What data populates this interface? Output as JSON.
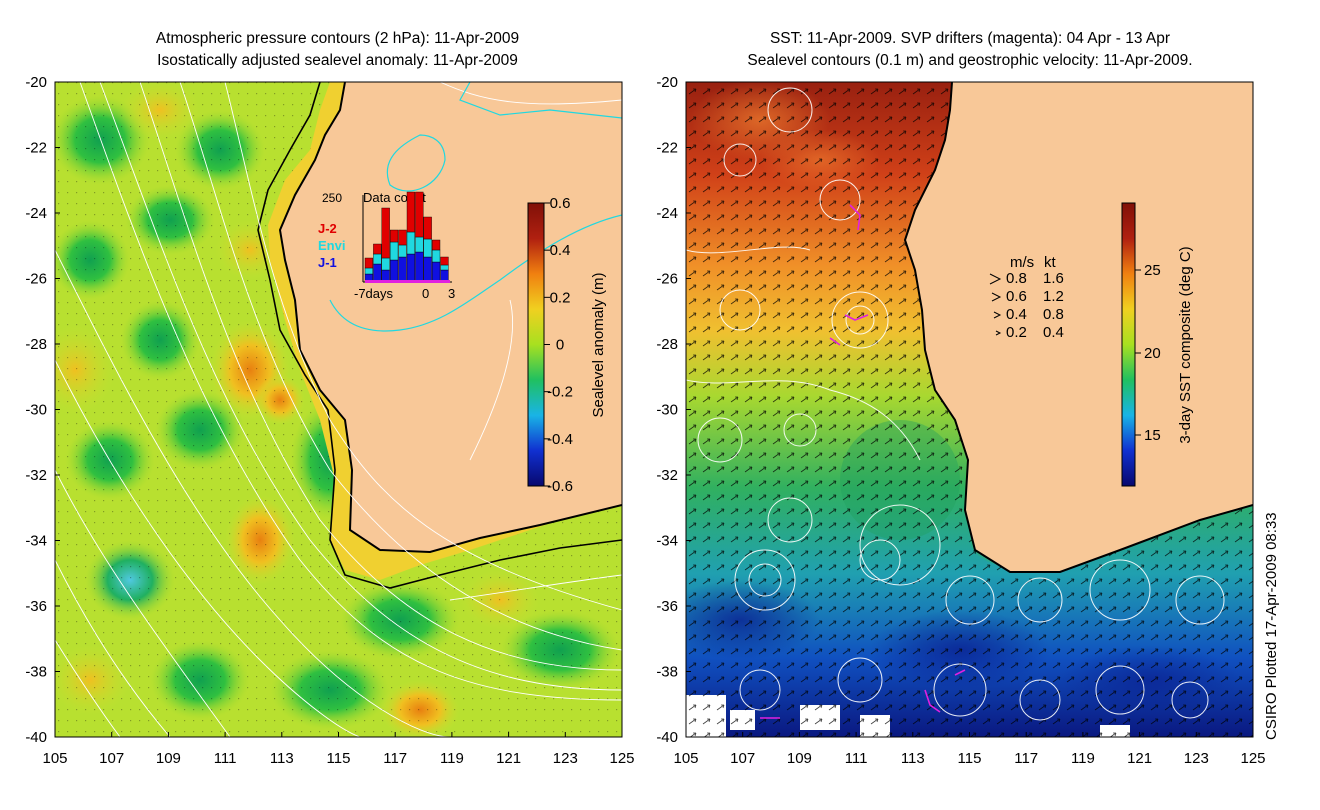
{
  "left_panel": {
    "title_line1": "Atmospheric pressure contours (2 hPa): 11-Apr-2009",
    "title_line2": "Isostatically adjusted sealevel anomaly: 11-Apr-2009",
    "colorbar": {
      "label": "Sealevel anomaly (m)",
      "ticks": [
        "0.6",
        "0.4",
        "0.2",
        "0",
        "-0.2",
        "-0.4",
        "-0.6"
      ],
      "range": [
        -0.6,
        0.6
      ],
      "colormap": [
        "#08086e",
        "#1030d0",
        "#19b4e6",
        "#20c060",
        "#a8e020",
        "#f0d020",
        "#f08010",
        "#b02010",
        "#801008"
      ]
    },
    "inset": {
      "title": "Data count",
      "ymax_label": "250",
      "x_labels": [
        "-7days",
        "0",
        "3"
      ],
      "legend": [
        {
          "name": "J-2",
          "color": "#e00000"
        },
        {
          "name": "Envi",
          "color": "#20d8e0"
        },
        {
          "name": "J-1",
          "color": "#1010e0"
        }
      ],
      "bars": [
        {
          "j1": 0.08,
          "envi": 0.06,
          "j2": 0.1
        },
        {
          "j1": 0.18,
          "envi": 0.1,
          "j2": 0.1
        },
        {
          "j1": 0.12,
          "envi": 0.12,
          "j2": 0.5
        },
        {
          "j1": 0.22,
          "envi": 0.18,
          "j2": 0.12
        },
        {
          "j1": 0.25,
          "envi": 0.12,
          "j2": 0.15
        },
        {
          "j1": 0.28,
          "envi": 0.22,
          "j2": 0.4
        },
        {
          "j1": 0.3,
          "envi": 0.15,
          "j2": 0.45
        },
        {
          "j1": 0.25,
          "envi": 0.18,
          "j2": 0.22
        },
        {
          "j1": 0.2,
          "envi": 0.12,
          "j2": 0.1
        },
        {
          "j1": 0.12,
          "envi": 0.05,
          "j2": 0.08
        }
      ]
    }
  },
  "right_panel": {
    "title_line1": "SST: 11-Apr-2009. SVP drifters (magenta): 04 Apr - 13 Apr",
    "title_line2": "Sealevel contours (0.1 m) and geostrophic velocity: 11-Apr-2009.",
    "colorbar": {
      "label": "3-day SST composite (deg C)",
      "ticks": [
        "25",
        "20",
        "15"
      ],
      "colormap": [
        "#08086e",
        "#1030d0",
        "#19b4e6",
        "#20c060",
        "#a8e020",
        "#f0d020",
        "#f08010",
        "#b02010",
        "#801008"
      ]
    },
    "velocity_legend": {
      "header_ms": "m/s",
      "header_kt": "kt",
      "rows": [
        {
          "ms": "0.8",
          "kt": "1.6"
        },
        {
          "ms": "0.6",
          "kt": "1.2"
        },
        {
          "ms": "0.4",
          "kt": "0.8"
        },
        {
          "ms": "0.2",
          "kt": "0.4"
        }
      ]
    }
  },
  "axes": {
    "y_ticks": [
      "-20",
      "-22",
      "-24",
      "-26",
      "-28",
      "-30",
      "-32",
      "-34",
      "-36",
      "-38",
      "-40"
    ],
    "x_ticks": [
      "105",
      "107",
      "109",
      "111",
      "113",
      "115",
      "117",
      "119",
      "121",
      "123",
      "125"
    ],
    "lon_range": [
      105,
      125
    ],
    "lat_range": [
      -40,
      -20
    ]
  },
  "credit": "CSIRO Plotted 17-Apr-2009 08:33",
  "colors": {
    "land": "#f8c898",
    "coast": "#000000",
    "pressure_contour": "#ffffff",
    "cyan_contour": "#20d8e0",
    "drifter": "#e020e0"
  }
}
